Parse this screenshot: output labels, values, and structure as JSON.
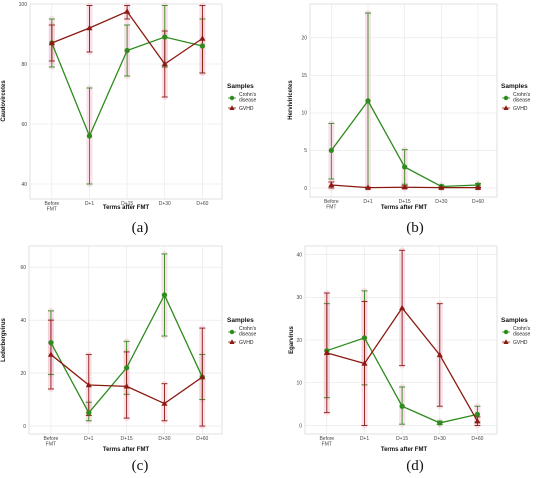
{
  "colors": {
    "crohn": "#2e8b1e",
    "gvhd": "#8b1a10",
    "halo": "#f5c8d8",
    "grid": "#e6e6e6"
  },
  "chart_data": [
    {
      "panel": "(a)",
      "type": "line",
      "ylabel": "Caudovircetes",
      "xlabel": "Terms after FMT",
      "categories": [
        "Before FMT",
        "D+1",
        "D+15",
        "D+30",
        "D+60"
      ],
      "ylim": [
        35,
        100
      ],
      "yticks": [
        40,
        60,
        80,
        100
      ],
      "grid": true,
      "legend": {
        "title": "Samples",
        "position": "right",
        "entries": [
          "Crohn's disease",
          "GVHD"
        ]
      },
      "series": [
        {
          "name": "Crohn's disease",
          "values": [
            87,
            56,
            84.5,
            89,
            86
          ],
          "err_low": [
            79,
            40,
            76,
            79,
            77
          ],
          "err_high": [
            95,
            72,
            93,
            99.5,
            95
          ]
        },
        {
          "name": "GVHD",
          "values": [
            87,
            92,
            97.5,
            80,
            88.5
          ],
          "err_low": [
            81,
            84,
            95,
            69,
            77
          ],
          "err_high": [
            93,
            99.5,
            99.5,
            91,
            99.5
          ]
        }
      ]
    },
    {
      "panel": "(b)",
      "type": "line",
      "ylabel": "Herviviricetes",
      "xlabel": "Terms after FMT",
      "categories": [
        "Before FMT",
        "D+1",
        "D+15",
        "D+30",
        "D+60"
      ],
      "ylim": [
        -1.2,
        24.5
      ],
      "yticks": [
        0,
        5,
        10,
        15,
        20
      ],
      "grid": true,
      "legend": {
        "title": "Samples",
        "position": "right",
        "entries": [
          "Crohn's disease",
          "GVHD"
        ]
      },
      "series": [
        {
          "name": "Crohn's disease",
          "values": [
            5,
            11.6,
            2.8,
            0.2,
            0.4
          ],
          "err_low": [
            1.2,
            0,
            0.5,
            0,
            0
          ],
          "err_high": [
            8.6,
            23.3,
            5.1,
            0.4,
            0.6
          ]
        },
        {
          "name": "GVHD",
          "values": [
            0.4,
            0.05,
            0.1,
            0.05,
            0.05
          ],
          "err_low": [
            0,
            0,
            0,
            0,
            0
          ],
          "err_high": [
            0.8,
            0.1,
            0.3,
            0.1,
            0.1
          ]
        }
      ]
    },
    {
      "panel": "(c)",
      "type": "line",
      "ylabel": "Lederbergvirus",
      "xlabel": "Terms after FMT",
      "categories": [
        "Before FMT",
        "D+1",
        "D+15",
        "D+30",
        "D+60"
      ],
      "ylim": [
        -3,
        68
      ],
      "yticks": [
        0,
        20,
        40,
        60
      ],
      "grid": true,
      "legend": {
        "title": "Samples",
        "position": "right",
        "entries": [
          "Crohn's disease",
          "GVHD"
        ]
      },
      "series": [
        {
          "name": "Crohn's disease",
          "values": [
            31.5,
            5,
            22,
            49.5,
            18.5
          ],
          "err_low": [
            19.5,
            2,
            12,
            34,
            10
          ],
          "err_high": [
            43.5,
            9,
            32,
            65,
            27
          ]
        },
        {
          "name": "GVHD",
          "values": [
            27,
            15.5,
            15,
            8.5,
            18.5
          ],
          "err_low": [
            14,
            4,
            3,
            2,
            0
          ],
          "err_high": [
            40,
            27,
            28,
            16,
            37
          ]
        }
      ]
    },
    {
      "panel": "(d)",
      "type": "line",
      "ylabel": "Egarvirus",
      "xlabel": "Terms after FMT",
      "categories": [
        "Before FMT",
        "D+1",
        "D+15",
        "D+30",
        "D+60"
      ],
      "ylim": [
        -2,
        42
      ],
      "yticks": [
        0,
        10,
        20,
        30,
        40
      ],
      "grid": true,
      "legend": {
        "title": "Samples",
        "position": "right",
        "entries": [
          "Crohn's disease",
          "GVHD"
        ]
      },
      "series": [
        {
          "name": "Crohn's disease",
          "values": [
            17.5,
            20.5,
            4.5,
            0.6,
            2.6
          ],
          "err_low": [
            6.5,
            9.5,
            0.3,
            0.2,
            0.8
          ],
          "err_high": [
            28.5,
            31.5,
            9,
            1,
            4.5
          ]
        },
        {
          "name": "GVHD",
          "values": [
            17,
            14.5,
            27.5,
            16.5,
            1
          ],
          "err_low": [
            3,
            0,
            14,
            4.5,
            0
          ],
          "err_high": [
            31,
            29,
            41,
            28.5,
            2
          ]
        }
      ]
    }
  ]
}
